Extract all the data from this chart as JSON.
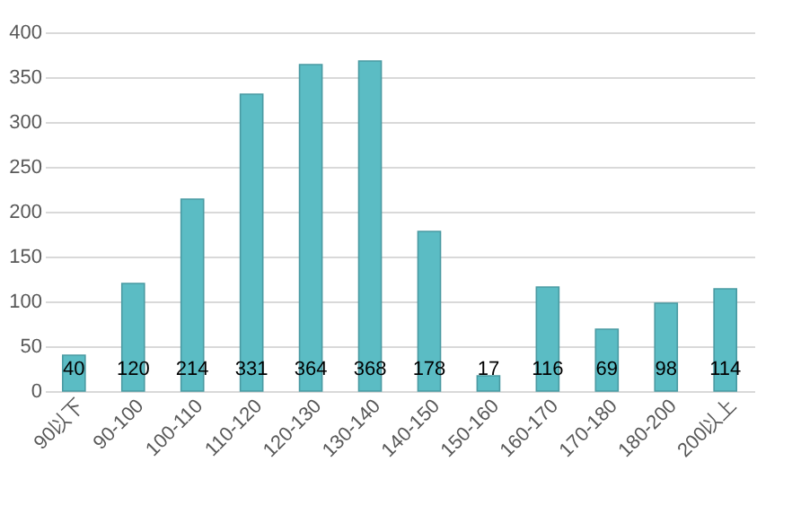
{
  "chart_data": {
    "type": "bar",
    "categories": [
      "90以下",
      "90-100",
      "100-110",
      "110-120",
      "120-130",
      "130-140",
      "140-150",
      "150-160",
      "160-170",
      "170-180",
      "180-200",
      "200以上"
    ],
    "values": [
      40,
      120,
      214,
      331,
      364,
      368,
      178,
      17,
      116,
      69,
      98,
      114
    ],
    "color": "#5bbcc4",
    "ylim": [
      0,
      400
    ],
    "yticks": [
      0,
      50,
      100,
      150,
      200,
      250,
      300,
      350,
      400
    ],
    "grid": "y",
    "data_labels": true
  }
}
